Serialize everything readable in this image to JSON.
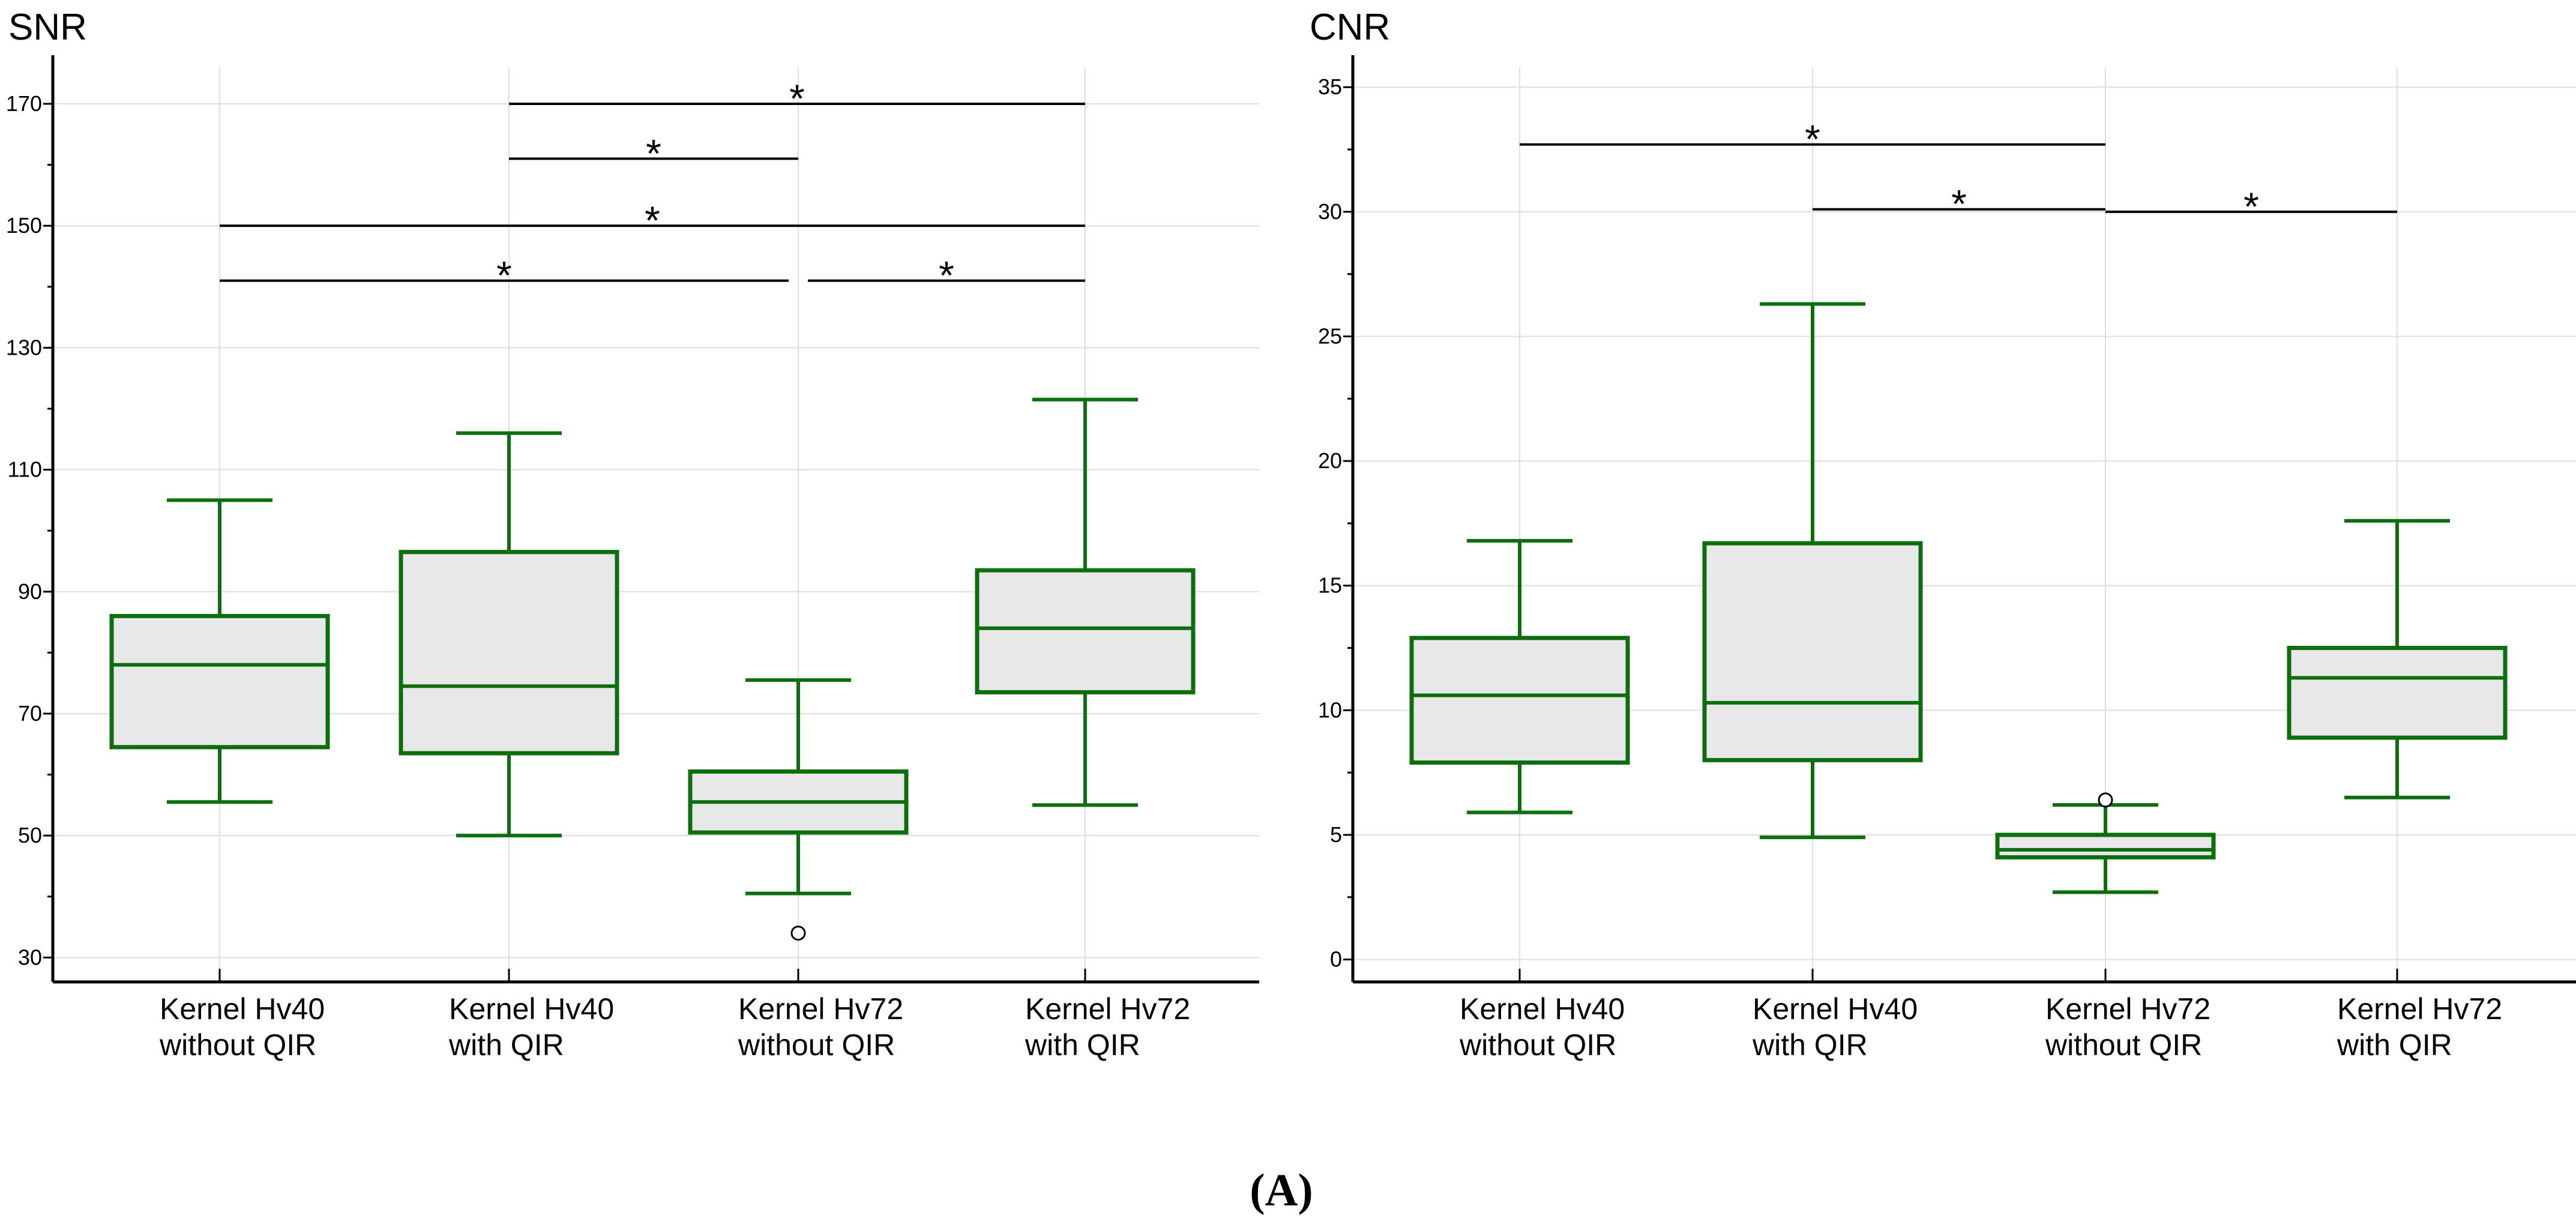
{
  "panel_label": "(A)",
  "colors": {
    "box_stroke": "#0d6e0d",
    "box_fill": "#e8e8e8",
    "grid": "#dedede",
    "axis": "#000000",
    "bracket": "#000000"
  },
  "chart_data": [
    {
      "type": "box",
      "title": "SNR",
      "ylim": [
        26,
        176
      ],
      "yticks": [
        30,
        50,
        70,
        90,
        110,
        130,
        150,
        170
      ],
      "categories": [
        [
          "Kernel Hv40",
          "without QIR"
        ],
        [
          "Kernel Hv40",
          "with QIR"
        ],
        [
          "Kernel Hv72",
          "without QIR"
        ],
        [
          "Kernel Hv72",
          "with QIR"
        ]
      ],
      "boxes": [
        {
          "whisker_low": 55.5,
          "q1": 64.5,
          "median": 78,
          "q3": 86,
          "whisker_high": 105,
          "outliers": []
        },
        {
          "whisker_low": 50,
          "q1": 63.5,
          "median": 74.5,
          "q3": 96.5,
          "whisker_high": 116,
          "outliers": []
        },
        {
          "whisker_low": 40.5,
          "q1": 50.5,
          "median": 55.5,
          "q3": 60.5,
          "whisker_high": 75.5,
          "outliers": [
            34
          ]
        },
        {
          "whisker_low": 55,
          "q1": 73.5,
          "median": 84,
          "q3": 93.5,
          "whisker_high": 121.5,
          "outliers": []
        }
      ],
      "significance": [
        {
          "from": 1,
          "to": 3,
          "y": 170,
          "label": "*"
        },
        {
          "from": 1,
          "to": 2,
          "y": 161,
          "label": "*"
        },
        {
          "from": 0,
          "to": 3,
          "y": 150,
          "label": "*"
        },
        {
          "from": 0,
          "to": 2,
          "y": 141,
          "label": "*"
        },
        {
          "from": 2,
          "to": 3,
          "y": 141,
          "label": "*"
        }
      ]
    },
    {
      "type": "box",
      "title": "CNR",
      "ylim": [
        -0.9,
        35.8
      ],
      "yticks": [
        0,
        5,
        10,
        15,
        20,
        25,
        30,
        35
      ],
      "categories": [
        [
          "Kernel Hv40",
          "without QIR"
        ],
        [
          "Kernel Hv40",
          "with QIR"
        ],
        [
          "Kernel Hv72",
          "without QIR"
        ],
        [
          "Kernel Hv72",
          "with QIR"
        ]
      ],
      "boxes": [
        {
          "whisker_low": 5.9,
          "q1": 7.9,
          "median": 10.6,
          "q3": 12.9,
          "whisker_high": 16.8,
          "outliers": []
        },
        {
          "whisker_low": 4.9,
          "q1": 8.0,
          "median": 10.3,
          "q3": 16.7,
          "whisker_high": 26.3,
          "outliers": []
        },
        {
          "whisker_low": 2.7,
          "q1": 4.1,
          "median": 4.4,
          "q3": 5.0,
          "whisker_high": 6.2,
          "outliers": [
            6.4
          ]
        },
        {
          "whisker_low": 6.5,
          "q1": 8.9,
          "median": 11.3,
          "q3": 12.5,
          "whisker_high": 17.6,
          "outliers": []
        }
      ],
      "significance": [
        {
          "from": 0,
          "to": 2,
          "y": 32.7,
          "label": "*"
        },
        {
          "from": 1,
          "to": 2,
          "y": 30.1,
          "label": "*"
        },
        {
          "from": 2,
          "to": 3,
          "y": 30.0,
          "label": "*"
        }
      ]
    }
  ]
}
